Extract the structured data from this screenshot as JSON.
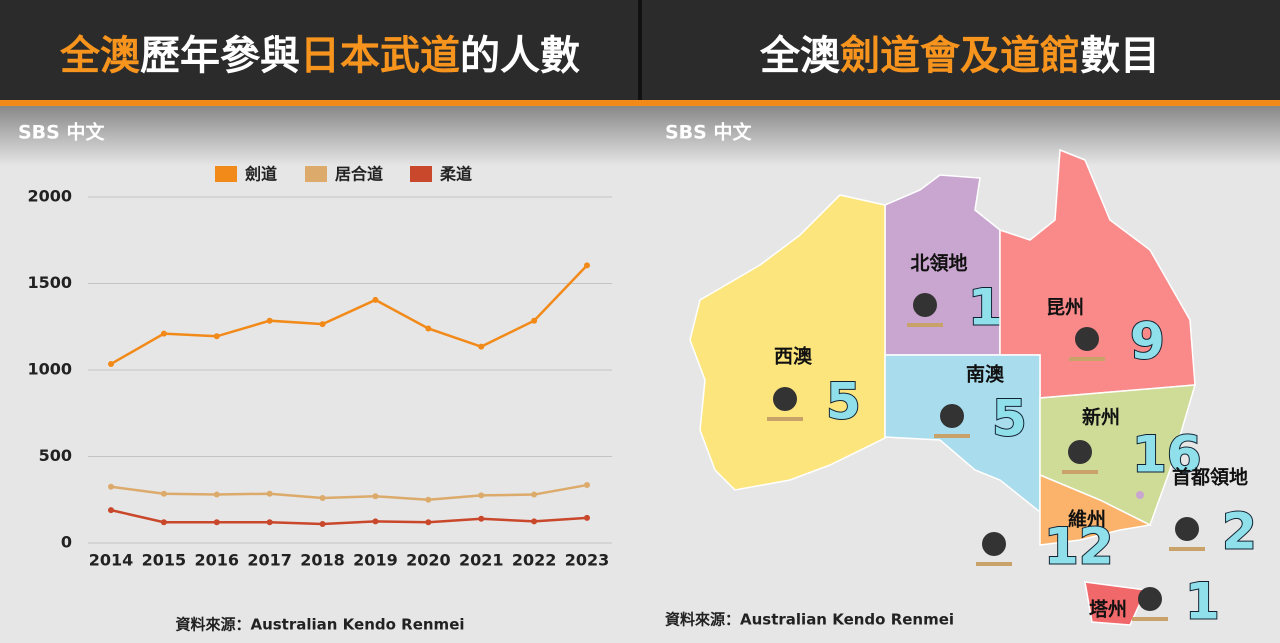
{
  "brand": "SBS 中文",
  "chart_data": [
    {
      "type": "line",
      "title": [
        {
          "text": "全澳",
          "color": "#f7941d"
        },
        {
          "text": "歷年參與",
          "color": "#ffffff"
        },
        {
          "text": "日本武道",
          "color": "#f7941d"
        },
        {
          "text": "的人數",
          "color": "#ffffff"
        }
      ],
      "x": [
        "2014",
        "2015",
        "2016",
        "2017",
        "2018",
        "2019",
        "2020",
        "2021",
        "2022",
        "2023"
      ],
      "series": [
        {
          "name": "劍道",
          "color": "#f28a1a",
          "values": [
            1035,
            1210,
            1195,
            1285,
            1265,
            1405,
            1240,
            1135,
            1285,
            1605
          ]
        },
        {
          "name": "居合道",
          "color": "#dcab6b",
          "values": [
            325,
            285,
            280,
            285,
            260,
            270,
            250,
            275,
            280,
            335
          ]
        },
        {
          "name": "柔道",
          "color": "#c9472a",
          "values": [
            190,
            120,
            120,
            120,
            110,
            125,
            120,
            140,
            125,
            145
          ]
        }
      ],
      "ylim": [
        0,
        2000
      ],
      "yticks": [
        0,
        500,
        1000,
        1500,
        2000
      ],
      "grid": true,
      "source": "資料來源：Australian Kendo Renmei"
    },
    {
      "type": "map",
      "title": [
        {
          "text": "全澳",
          "color": "#ffffff"
        },
        {
          "text": "劍道會及道館",
          "color": "#f7941d"
        },
        {
          "text": "數目",
          "color": "#ffffff"
        }
      ],
      "categories": [
        "北領地",
        "昆州",
        "西澳",
        "南澳",
        "新州",
        "首都領地",
        "維州",
        "塔州"
      ],
      "values": [
        1,
        9,
        5,
        5,
        16,
        2,
        12,
        1
      ],
      "colors": [
        "#c9a6cf",
        "#f98a89",
        "#fde57e",
        "#a9dced",
        "#cfdc98",
        "#c9a6cf",
        "#fbb36b",
        "#f1686b"
      ],
      "source": "資料來源：Australian Kendo Renmei"
    }
  ]
}
